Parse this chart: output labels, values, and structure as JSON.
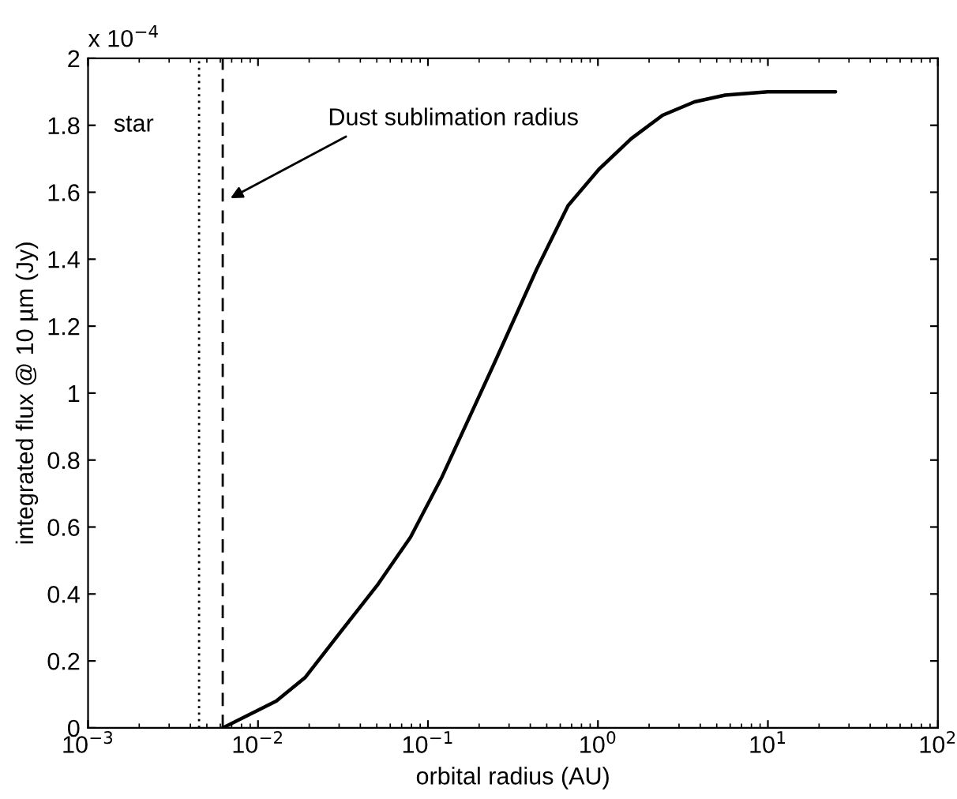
{
  "chart_data": {
    "type": "line",
    "xlabel": "orbital radius (AU)",
    "ylabel": "integrated flux @ 10 µm (Jy)",
    "annotations": [
      "x 10$^{−4}$",
      "Dust sublimation radius"
    ],
    "log": "x",
    "grid": false,
    "legend": false,
    "marker": "none",
    "line_style": "solid",
    "xlim": [
      0.001,
      100
    ],
    "xticks": [
      {
        "value": 0.001,
        "label": "10$^{−3}$"
      },
      {
        "value": 0.01,
        "label": "10$^{−2}$"
      },
      {
        "value": 0.1,
        "label": "10$^{−1}$"
      },
      {
        "value": 1,
        "label": "10$^{0}$"
      },
      {
        "value": 10,
        "label": "10$^{1}$"
      },
      {
        "value": 100,
        "label": "10$^{2}$"
      }
    ],
    "ylim": [
      0,
      2
    ],
    "yticks": [
      0,
      0.2,
      0.4,
      0.6,
      0.8,
      1,
      1.2,
      1.4,
      1.6,
      1.8,
      2
    ],
    "ref_lines": [
      {
        "axis": "x",
        "value": 0.0045,
        "label": "star",
        "line_style": "dotted",
        "color": "#000000"
      },
      {
        "axis": "x",
        "value": 0.0062,
        "line_style": "dashed",
        "color": "#000000"
      }
    ],
    "series": [
      {
        "color": "#000000",
        "x": [
          0.0062,
          0.0128,
          0.0189,
          0.031,
          0.051,
          0.079,
          0.121,
          0.246,
          0.436,
          0.667,
          1.02,
          1.57,
          2.4,
          3.7,
          5.6,
          10,
          25
        ],
        "values": [
          0,
          0.08,
          0.15,
          0.29,
          0.43,
          0.57,
          0.75,
          1.09,
          1.37,
          1.56,
          1.67,
          1.76,
          1.83,
          1.87,
          1.89,
          1.9,
          1.9
        ]
      }
    ]
  }
}
